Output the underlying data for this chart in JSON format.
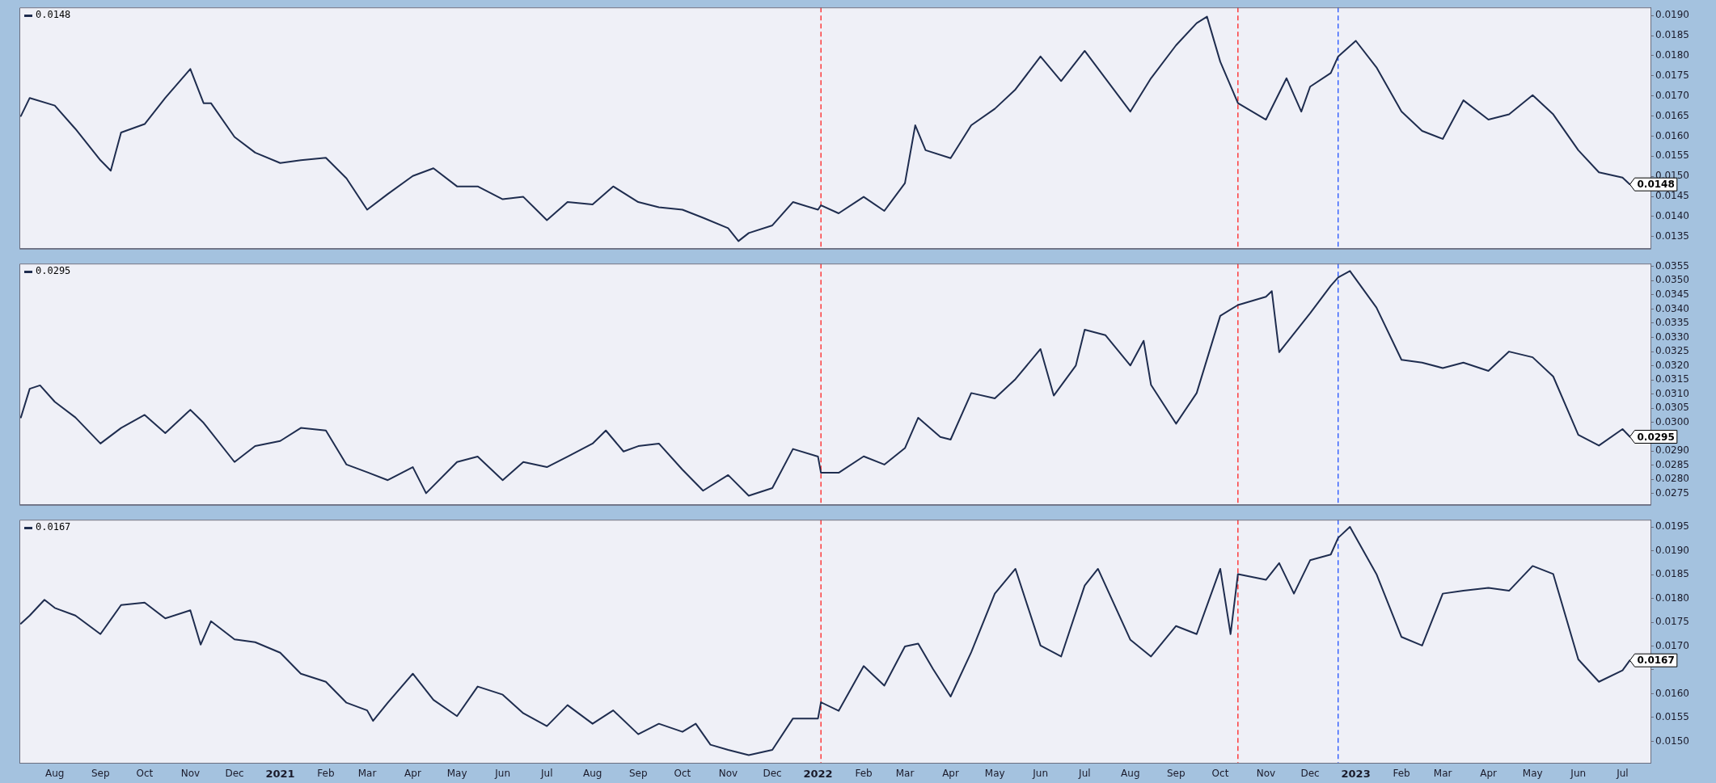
{
  "chart_data": [
    {
      "type": "line",
      "tick_labels": "y",
      "grid": false,
      "legend": false,
      "marker": "none",
      "line_style": "solid",
      "annotations": [
        "0.0148",
        {
          "text": "0.0148",
          "x": "2023-07-06",
          "y": 0.0148
        }
      ],
      "xlim": [
        "2020-07-08",
        "2023-07-20"
      ],
      "ylim": [
        0.0132,
        0.0192
      ],
      "yticks": [
        {
          "value": 0.0135,
          "label": "0.0135"
        },
        {
          "value": 0.014,
          "label": "0.0140"
        },
        {
          "value": 0.0145,
          "label": "0.0145"
        },
        {
          "value": 0.015,
          "label": "0.0150"
        },
        {
          "value": 0.0155,
          "label": "0.0155"
        },
        {
          "value": 0.016,
          "label": "0.0160"
        },
        {
          "value": 0.0165,
          "label": "0.0165"
        },
        {
          "value": 0.017,
          "label": "0.0170"
        },
        {
          "value": 0.0175,
          "label": "0.0175"
        },
        {
          "value": 0.018,
          "label": "0.0180"
        },
        {
          "value": 0.0185,
          "label": "0.0185"
        },
        {
          "value": 0.019,
          "label": "0.0190"
        }
      ],
      "ref_lines": [
        {
          "axis": "x",
          "value": "2022-01-03",
          "color": "#ff2020",
          "line_style": "dashed"
        },
        {
          "axis": "x",
          "value": "2022-10-13",
          "color": "#ff2020",
          "line_style": "dashed"
        },
        {
          "axis": "x",
          "value": "2022-12-20",
          "color": "#2050ff",
          "line_style": "dashed"
        }
      ],
      "series": [
        {
          "color": "#1f2d4f",
          "x": [
            "2020-07-09",
            "2020-07-15",
            "2020-08-01",
            "2020-08-15",
            "2020-09-01",
            "2020-09-08",
            "2020-09-15",
            "2020-10-01",
            "2020-10-15",
            "2020-11-01",
            "2020-11-10",
            "2020-11-15",
            "2020-12-01",
            "2020-12-15",
            "2021-01-01",
            "2021-01-15",
            "2021-02-01",
            "2021-02-15",
            "2021-03-01",
            "2021-03-15",
            "2021-04-01",
            "2021-04-15",
            "2021-05-01",
            "2021-05-15",
            "2021-06-01",
            "2021-06-15",
            "2021-07-01",
            "2021-07-15",
            "2021-08-01",
            "2021-08-15",
            "2021-09-01",
            "2021-09-15",
            "2021-10-01",
            "2021-10-15",
            "2021-11-01",
            "2021-11-08",
            "2021-11-15",
            "2021-12-01",
            "2021-12-15",
            "2022-01-01",
            "2022-01-03",
            "2022-01-15",
            "2022-02-01",
            "2022-02-15",
            "2022-03-01",
            "2022-03-08",
            "2022-03-15",
            "2022-04-01",
            "2022-04-15",
            "2022-05-01",
            "2022-05-15",
            "2022-06-01",
            "2022-06-15",
            "2022-07-01",
            "2022-07-15",
            "2022-08-01",
            "2022-08-15",
            "2022-09-01",
            "2022-09-15",
            "2022-09-22",
            "2022-10-01",
            "2022-10-13",
            "2022-11-01",
            "2022-11-15",
            "2022-11-25",
            "2022-12-01",
            "2022-12-15",
            "2022-12-20",
            "2023-01-01",
            "2023-01-15",
            "2023-02-01",
            "2023-02-15",
            "2023-03-01",
            "2023-03-15",
            "2023-04-01",
            "2023-04-15",
            "2023-05-01",
            "2023-05-15",
            "2023-06-01",
            "2023-06-15",
            "2023-07-01",
            "2023-07-06"
          ],
          "values": [
            0.0165,
            0.01695,
            0.01676,
            0.01618,
            0.0154,
            0.01514,
            0.01609,
            0.0163,
            0.01695,
            0.01767,
            0.01682,
            0.01682,
            0.01598,
            0.01559,
            0.01533,
            0.0154,
            0.01546,
            0.01495,
            0.01417,
            0.01456,
            0.01501,
            0.0152,
            0.01475,
            0.01475,
            0.01443,
            0.01449,
            0.01391,
            0.01436,
            0.0143,
            0.01475,
            0.01436,
            0.01423,
            0.01417,
            0.01397,
            0.01371,
            0.01339,
            0.01359,
            0.01378,
            0.01436,
            0.01417,
            0.01428,
            0.01408,
            0.01449,
            0.01414,
            0.01483,
            0.01627,
            0.01565,
            0.01545,
            0.01627,
            0.01668,
            0.01716,
            0.01798,
            0.01737,
            0.01812,
            0.01744,
            0.01661,
            0.01744,
            0.01826,
            0.01881,
            0.01897,
            0.01785,
            0.01682,
            0.01641,
            0.01744,
            0.01661,
            0.01723,
            0.01757,
            0.01798,
            0.01837,
            0.01771,
            0.01661,
            0.01613,
            0.01593,
            0.01689,
            0.01641,
            0.01654,
            0.01702,
            0.01654,
            0.01565,
            0.0151,
            0.01497,
            0.0148
          ]
        }
      ]
    },
    {
      "type": "line",
      "tick_labels": "y",
      "grid": false,
      "legend": false,
      "marker": "none",
      "line_style": "solid",
      "annotations": [
        "0.0295",
        {
          "text": "0.0295",
          "x": "2023-07-06",
          "y": 0.0295
        }
      ],
      "xlim": [
        "2020-07-08",
        "2023-07-20"
      ],
      "ylim": [
        0.0271,
        0.0356
      ],
      "yticks": [
        {
          "value": 0.0275,
          "label": "0.0275"
        },
        {
          "value": 0.028,
          "label": "0.0280"
        },
        {
          "value": 0.0285,
          "label": "0.0285"
        },
        {
          "value": 0.029,
          "label": "0.0290"
        },
        {
          "value": 0.0295,
          "label": null
        },
        {
          "value": 0.03,
          "label": "0.0300"
        },
        {
          "value": 0.0305,
          "label": "0.0305"
        },
        {
          "value": 0.031,
          "label": "0.0310"
        },
        {
          "value": 0.0315,
          "label": "0.0315"
        },
        {
          "value": 0.032,
          "label": "0.0320"
        },
        {
          "value": 0.0325,
          "label": "0.0325"
        },
        {
          "value": 0.033,
          "label": "0.0330"
        },
        {
          "value": 0.0335,
          "label": "0.0335"
        },
        {
          "value": 0.034,
          "label": "0.0340"
        },
        {
          "value": 0.0345,
          "label": "0.0345"
        },
        {
          "value": 0.035,
          "label": "0.0350"
        },
        {
          "value": 0.0355,
          "label": "0.0355"
        }
      ],
      "ref_lines": [
        {
          "axis": "x",
          "value": "2022-01-03",
          "color": "#ff2020",
          "line_style": "dashed"
        },
        {
          "axis": "x",
          "value": "2022-10-13",
          "color": "#ff2020",
          "line_style": "dashed"
        },
        {
          "axis": "x",
          "value": "2022-12-20",
          "color": "#2050ff",
          "line_style": "dashed"
        }
      ],
      "series": [
        {
          "color": "#1f2d4f",
          "x": [
            "2020-07-09",
            "2020-07-15",
            "2020-07-22",
            "2020-08-01",
            "2020-08-15",
            "2020-09-01",
            "2020-09-15",
            "2020-10-01",
            "2020-10-15",
            "2020-11-01",
            "2020-11-10",
            "2020-12-01",
            "2020-12-15",
            "2021-01-01",
            "2021-01-15",
            "2021-02-01",
            "2021-02-15",
            "2021-03-01",
            "2021-03-15",
            "2021-04-01",
            "2021-04-10",
            "2021-05-01",
            "2021-05-15",
            "2021-06-01",
            "2021-06-15",
            "2021-07-01",
            "2021-07-15",
            "2021-08-01",
            "2021-08-10",
            "2021-08-22",
            "2021-09-01",
            "2021-09-15",
            "2021-10-01",
            "2021-10-15",
            "2021-11-01",
            "2021-11-15",
            "2021-12-01",
            "2021-12-15",
            "2022-01-01",
            "2022-01-03",
            "2022-01-15",
            "2022-02-01",
            "2022-02-15",
            "2022-03-01",
            "2022-03-10",
            "2022-03-25",
            "2022-04-01",
            "2022-04-15",
            "2022-05-01",
            "2022-05-15",
            "2022-06-01",
            "2022-06-10",
            "2022-06-25",
            "2022-07-01",
            "2022-07-15",
            "2022-08-01",
            "2022-08-10",
            "2022-08-15",
            "2022-09-01",
            "2022-09-15",
            "2022-10-01",
            "2022-10-13",
            "2022-11-01",
            "2022-11-05",
            "2022-11-10",
            "2022-12-01",
            "2022-12-15",
            "2022-12-20",
            "2022-12-28",
            "2023-01-15",
            "2023-02-01",
            "2023-02-15",
            "2023-03-01",
            "2023-03-15",
            "2023-04-01",
            "2023-04-15",
            "2023-05-01",
            "2023-05-15",
            "2023-06-01",
            "2023-06-15",
            "2023-07-01",
            "2023-07-06"
          ],
          "values": [
            0.03018,
            0.03119,
            0.03131,
            0.03073,
            0.03018,
            0.02926,
            0.02981,
            0.03027,
            0.02963,
            0.03045,
            0.02999,
            0.02861,
            0.02917,
            0.02935,
            0.02981,
            0.02972,
            0.02852,
            0.02825,
            0.02797,
            0.02843,
            0.02751,
            0.02861,
            0.0288,
            0.02797,
            0.02861,
            0.02843,
            0.0288,
            0.02926,
            0.02972,
            0.02898,
            0.02917,
            0.02926,
            0.02834,
            0.0276,
            0.02815,
            0.02742,
            0.02769,
            0.02907,
            0.0288,
            0.02823,
            0.02823,
            0.02881,
            0.02852,
            0.0291,
            0.03017,
            0.02949,
            0.0294,
            0.03104,
            0.03085,
            0.03153,
            0.03259,
            0.03095,
            0.03201,
            0.03327,
            0.03308,
            0.03201,
            0.03288,
            0.03133,
            0.02996,
            0.03104,
            0.03376,
            0.03414,
            0.03443,
            0.03463,
            0.03248,
            0.03385,
            0.03482,
            0.03511,
            0.03534,
            0.03405,
            0.03221,
            0.03211,
            0.03192,
            0.03211,
            0.03182,
            0.0325,
            0.0323,
            0.03162,
            0.02957,
            0.02919,
            0.02977,
            0.0295
          ]
        }
      ]
    },
    {
      "type": "line",
      "grid": false,
      "legend": false,
      "marker": "none",
      "line_style": "solid",
      "annotations": [
        "0.0167",
        {
          "text": "0.0167",
          "x": "2023-07-06",
          "y": 0.0167
        }
      ],
      "xlim": [
        "2020-07-08",
        "2023-07-20"
      ],
      "xticks": [
        {
          "value": "2020-08-01",
          "label": "Aug"
        },
        {
          "value": "2020-09-01",
          "label": "Sep"
        },
        {
          "value": "2020-10-01",
          "label": "Oct"
        },
        {
          "value": "2020-11-01",
          "label": "Nov"
        },
        {
          "value": "2020-12-01",
          "label": "Dec"
        },
        {
          "value": "2021-01-01",
          "label": "2021"
        },
        {
          "value": "2021-02-01",
          "label": "Feb"
        },
        {
          "value": "2021-03-01",
          "label": "Mar"
        },
        {
          "value": "2021-04-01",
          "label": "Apr"
        },
        {
          "value": "2021-05-01",
          "label": "May"
        },
        {
          "value": "2021-06-01",
          "label": "Jun"
        },
        {
          "value": "2021-07-01",
          "label": "Jul"
        },
        {
          "value": "2021-08-01",
          "label": "Aug"
        },
        {
          "value": "2021-09-01",
          "label": "Sep"
        },
        {
          "value": "2021-10-01",
          "label": "Oct"
        },
        {
          "value": "2021-11-01",
          "label": "Nov"
        },
        {
          "value": "2021-12-01",
          "label": "Dec"
        },
        {
          "value": "2022-01-01",
          "label": "2022"
        },
        {
          "value": "2022-02-01",
          "label": "Feb"
        },
        {
          "value": "2022-03-01",
          "label": "Mar"
        },
        {
          "value": "2022-04-01",
          "label": "Apr"
        },
        {
          "value": "2022-05-01",
          "label": "May"
        },
        {
          "value": "2022-06-01",
          "label": "Jun"
        },
        {
          "value": "2022-07-01",
          "label": "Jul"
        },
        {
          "value": "2022-08-01",
          "label": "Aug"
        },
        {
          "value": "2022-09-01",
          "label": "Sep"
        },
        {
          "value": "2022-10-01",
          "label": "Oct"
        },
        {
          "value": "2022-11-01",
          "label": "Nov"
        },
        {
          "value": "2022-12-01",
          "label": "Dec"
        },
        {
          "value": "2023-01-01",
          "label": "2023"
        },
        {
          "value": "2023-02-01",
          "label": "Feb"
        },
        {
          "value": "2023-03-01",
          "label": "Mar"
        },
        {
          "value": "2023-04-01",
          "label": "Apr"
        },
        {
          "value": "2023-05-01",
          "label": "May"
        },
        {
          "value": "2023-06-01",
          "label": "Jun"
        },
        {
          "value": "2023-07-01",
          "label": "Jul"
        }
      ],
      "ylim": [
        0.01455,
        0.01965
      ],
      "yticks": [
        {
          "value": 0.015,
          "label": "0.0150"
        },
        {
          "value": 0.0155,
          "label": "0.0155"
        },
        {
          "value": 0.016,
          "label": "0.0160"
        },
        {
          "value": 0.0165,
          "label": null
        },
        {
          "value": 0.017,
          "label": "0.0170"
        },
        {
          "value": 0.0175,
          "label": "0.0175"
        },
        {
          "value": 0.018,
          "label": "0.0180"
        },
        {
          "value": 0.0185,
          "label": "0.0185"
        },
        {
          "value": 0.019,
          "label": "0.0190"
        },
        {
          "value": 0.0195,
          "label": "0.0195"
        }
      ],
      "ref_lines": [
        {
          "axis": "x",
          "value": "2022-01-03",
          "color": "#ff2020",
          "line_style": "dashed"
        },
        {
          "axis": "x",
          "value": "2022-10-13",
          "color": "#ff2020",
          "line_style": "dashed"
        },
        {
          "axis": "x",
          "value": "2022-12-20",
          "color": "#2050ff",
          "line_style": "dashed"
        }
      ],
      "series": [
        {
          "color": "#1f2d4f",
          "x": [
            "2020-07-09",
            "2020-07-15",
            "2020-07-25",
            "2020-08-01",
            "2020-08-15",
            "2020-09-01",
            "2020-09-15",
            "2020-10-01",
            "2020-10-15",
            "2020-11-01",
            "2020-11-08",
            "2020-11-15",
            "2020-12-01",
            "2020-12-15",
            "2021-01-01",
            "2021-01-15",
            "2021-02-01",
            "2021-02-15",
            "2021-03-01",
            "2021-03-05",
            "2021-03-15",
            "2021-04-01",
            "2021-04-15",
            "2021-05-01",
            "2021-05-15",
            "2021-06-01",
            "2021-06-15",
            "2021-07-01",
            "2021-07-15",
            "2021-08-01",
            "2021-08-15",
            "2021-09-01",
            "2021-09-15",
            "2021-10-01",
            "2021-10-10",
            "2021-10-20",
            "2021-11-01",
            "2021-11-15",
            "2021-12-01",
            "2021-12-15",
            "2022-01-01",
            "2022-01-03",
            "2022-01-15",
            "2022-02-01",
            "2022-02-15",
            "2022-03-01",
            "2022-03-10",
            "2022-03-20",
            "2022-04-01",
            "2022-04-15",
            "2022-05-01",
            "2022-05-15",
            "2022-06-01",
            "2022-06-15",
            "2022-07-01",
            "2022-07-10",
            "2022-08-01",
            "2022-08-15",
            "2022-09-01",
            "2022-09-15",
            "2022-10-01",
            "2022-10-08",
            "2022-10-13",
            "2022-11-01",
            "2022-11-10",
            "2022-11-20",
            "2022-12-01",
            "2022-12-15",
            "2022-12-20",
            "2022-12-28",
            "2023-01-15",
            "2023-02-01",
            "2023-02-15",
            "2023-03-01",
            "2023-03-15",
            "2023-04-01",
            "2023-04-15",
            "2023-05-01",
            "2023-05-15",
            "2023-06-01",
            "2023-06-15",
            "2023-07-01",
            "2023-07-06"
          ],
          "values": [
            0.01747,
            0.01764,
            0.01797,
            0.0178,
            0.01764,
            0.01725,
            0.01786,
            0.01791,
            0.01758,
            0.01775,
            0.01703,
            0.01752,
            0.01714,
            0.01708,
            0.01686,
            0.01642,
            0.01625,
            0.01581,
            0.01565,
            0.01543,
            0.01581,
            0.01642,
            0.01587,
            0.01553,
            0.01615,
            0.01598,
            0.01559,
            0.01532,
            0.01576,
            0.01537,
            0.01565,
            0.01515,
            0.01537,
            0.0152,
            0.01537,
            0.01493,
            0.01482,
            0.01471,
            0.01482,
            0.01548,
            0.01548,
            0.01582,
            0.01564,
            0.01658,
            0.01617,
            0.01699,
            0.01705,
            0.01652,
            0.01594,
            0.01687,
            0.0181,
            0.01862,
            0.01701,
            0.01678,
            0.01827,
            0.01862,
            0.01713,
            0.01678,
            0.01742,
            0.01725,
            0.01862,
            0.01725,
            0.01851,
            0.01839,
            0.01874,
            0.0181,
            0.0188,
            0.01892,
            0.01927,
            0.0195,
            0.01851,
            0.01719,
            0.01701,
            0.0181,
            0.01816,
            0.01822,
            0.01816,
            0.01868,
            0.01851,
            0.01672,
            0.01625,
            0.01649,
            0.0167
          ]
        }
      ]
    }
  ]
}
